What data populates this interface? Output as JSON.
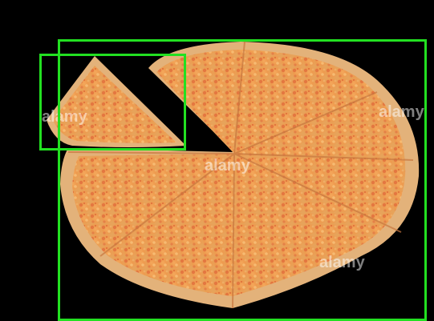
{
  "image": {
    "background_color": "#000000",
    "subject": "pizza",
    "detection_boxes": [
      {
        "label": "",
        "color": "#22e021"
      },
      {
        "label": "",
        "color": "#22e021"
      }
    ],
    "watermark_text": "alamy"
  }
}
